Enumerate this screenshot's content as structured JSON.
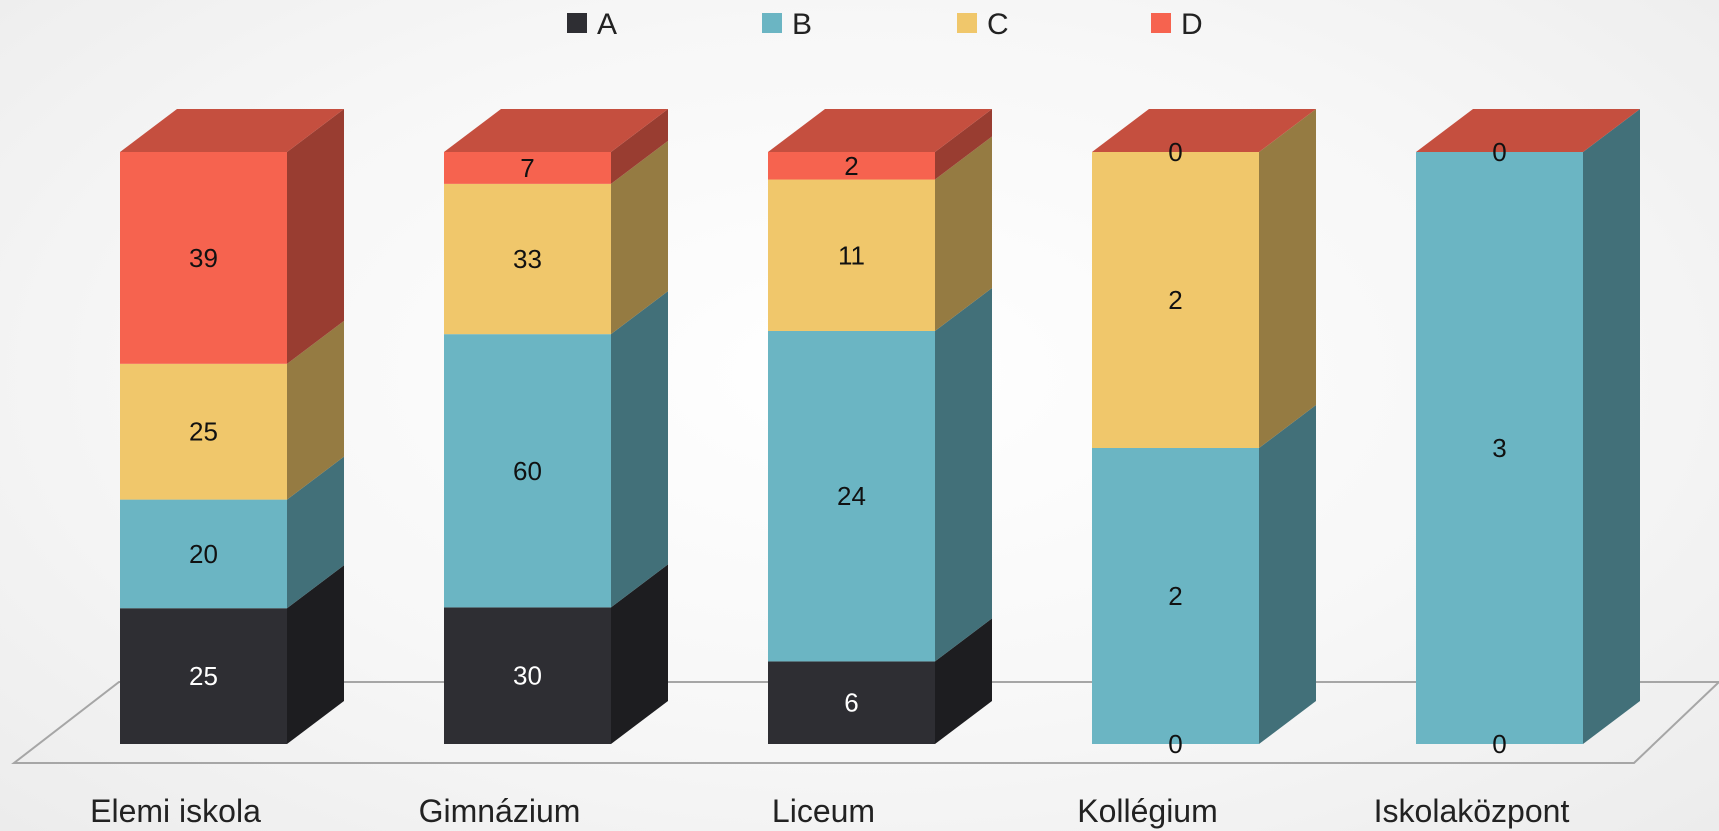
{
  "chart_data": {
    "type": "bar",
    "stacked": true,
    "normalized": true,
    "three_d": true,
    "categories": [
      "Elemi iskola",
      "Gimnázium",
      "Liceum",
      "Kollégium",
      "Iskolaközpont"
    ],
    "series": [
      {
        "name": "A",
        "values": [
          25,
          30,
          6,
          0,
          0
        ],
        "color": "#2e2e33"
      },
      {
        "name": "B",
        "values": [
          20,
          60,
          24,
          2,
          3
        ],
        "color": "#6bb5c3"
      },
      {
        "name": "C",
        "values": [
          25,
          33,
          11,
          2,
          0
        ],
        "color": "#f0c76b"
      },
      {
        "name": "D",
        "values": [
          39,
          7,
          2,
          0,
          0
        ],
        "color": "#f6634f"
      }
    ],
    "data_labels": [
      {
        "category": 0,
        "series": 0,
        "text": "25"
      },
      {
        "category": 0,
        "series": 1,
        "text": "20"
      },
      {
        "category": 0,
        "series": 2,
        "text": "25"
      },
      {
        "category": 0,
        "series": 3,
        "text": "39"
      },
      {
        "category": 1,
        "series": 0,
        "text": "30"
      },
      {
        "category": 1,
        "series": 1,
        "text": "60"
      },
      {
        "category": 1,
        "series": 2,
        "text": "33"
      },
      {
        "category": 1,
        "series": 3,
        "text": "7"
      },
      {
        "category": 2,
        "series": 0,
        "text": "6"
      },
      {
        "category": 2,
        "series": 1,
        "text": "24"
      },
      {
        "category": 2,
        "series": 2,
        "text": "11"
      },
      {
        "category": 2,
        "series": 3,
        "text": "2"
      },
      {
        "category": 3,
        "series": 0,
        "text": "0"
      },
      {
        "category": 3,
        "series": 1,
        "text": "2"
      },
      {
        "category": 3,
        "series": 2,
        "text": "2"
      },
      {
        "category": 3,
        "series": 3,
        "text": "0"
      },
      {
        "category": 4,
        "series": 0,
        "text": "0"
      },
      {
        "category": 4,
        "series": 1,
        "text": "3"
      },
      {
        "category": 4,
        "series": 3,
        "text": "0"
      }
    ],
    "legend_position": "top",
    "grid": false,
    "ylim": [
      0,
      1
    ]
  }
}
